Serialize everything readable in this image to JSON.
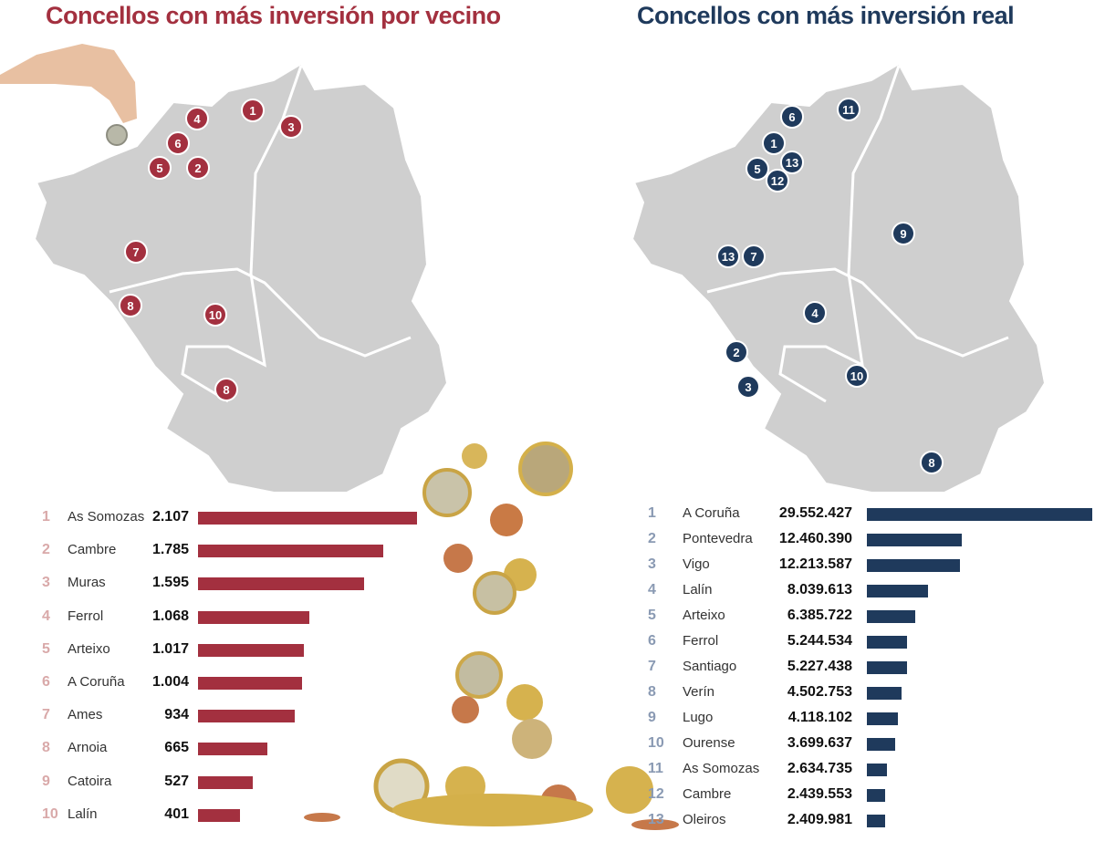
{
  "colors": {
    "left_accent": "#a3303f",
    "right_accent": "#1f3a5c",
    "left_rank": "#d9a9a9",
    "right_rank": "#8a9ab3",
    "map_fill": "#cfcfcf"
  },
  "left": {
    "title": "Concellos con más inversión por vecino",
    "map_markers": [
      "1",
      "3",
      "4",
      "6",
      "5",
      "2",
      "7",
      "8",
      "10",
      "8"
    ]
  },
  "right": {
    "title": "Concellos con más inversión real",
    "map_markers": [
      "6",
      "11",
      "1",
      "13",
      "5",
      "12",
      "9",
      "13",
      "7",
      "4",
      "2",
      "3",
      "10",
      "8"
    ]
  },
  "chart_data": [
    {
      "type": "bar",
      "orientation": "horizontal",
      "title": "Concellos con más inversión por vecino",
      "ranks": [
        "1",
        "2",
        "3",
        "4",
        "5",
        "6",
        "7",
        "8",
        "9",
        "10"
      ],
      "categories": [
        "As Somozas",
        "Cambre",
        "Muras",
        "Ferrol",
        "Arteixo",
        "A Coruña",
        "Ames",
        "Arnoia",
        "Catoira",
        "Lalín"
      ],
      "values": [
        2107,
        1785,
        1595,
        1068,
        1017,
        1004,
        934,
        665,
        527,
        401
      ],
      "value_labels": [
        "2.107",
        "1.785",
        "1.595",
        "1.068",
        "1.017",
        "1.004",
        "934",
        "665",
        "527",
        "401"
      ]
    },
    {
      "type": "bar",
      "orientation": "horizontal",
      "title": "Concellos con más inversión real",
      "ranks": [
        "1",
        "2",
        "3",
        "4",
        "5",
        "6",
        "7",
        "8",
        "9",
        "10",
        "11",
        "12",
        "13"
      ],
      "categories": [
        "A Coruña",
        "Pontevedra",
        "Vigo",
        "Lalín",
        "Arteixo",
        "Ferrol",
        "Santiago",
        "Verín",
        "Lugo",
        "Ourense",
        "As Somozas",
        "Cambre",
        "Oleiros"
      ],
      "values": [
        29552427,
        12460390,
        12213587,
        8039613,
        6385722,
        5244534,
        5227438,
        4502753,
        4118102,
        3699637,
        2634735,
        2439553,
        2409981
      ],
      "value_labels": [
        "29.552.427",
        "12.460.390",
        "12.213.587",
        "8.039.613",
        "6.385.722",
        "5.244.534",
        "5.227.438",
        "4.502.753",
        "4.118.102",
        "3.699.637",
        "2.634.735",
        "2.439.553",
        "2.409.981"
      ]
    }
  ]
}
